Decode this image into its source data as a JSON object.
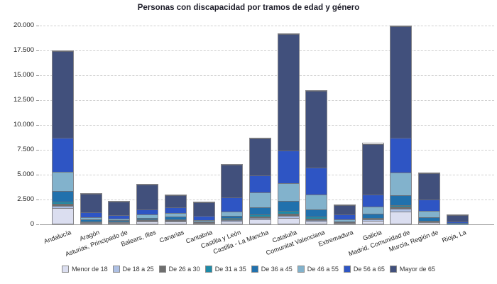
{
  "title": "Personas con discapacidad por tramos de edad y género",
  "chart_data": {
    "type": "bar",
    "stacked": true,
    "title": "Personas con discapacidad por tramos de edad y género",
    "xlabel": "",
    "ylabel": "",
    "ylim": [
      0,
      20000
    ],
    "yticks": [
      0,
      2500,
      5000,
      7500,
      10000,
      12500,
      15000,
      17500,
      20000
    ],
    "ytick_labels": [
      "0",
      "2.500",
      "5.000",
      "7.500",
      "10.000",
      "12.500",
      "15.000",
      "17.500",
      "20.000"
    ],
    "grid": "horizontal-dashed",
    "legend_position": "bottom",
    "categories": [
      "Andalucía",
      "Aragón",
      "Asturias, Principado de",
      "Balears, Illes",
      "Canarias",
      "Cantabria",
      "Castilla y León",
      "Castilla - La Mancha",
      "Cataluña",
      "Comunitat Valenciana",
      "Extremadura",
      "Galicia",
      "Madrid, Comunidad de",
      "Murcia, Región de",
      "Rioja, La"
    ],
    "series": [
      {
        "name": "Menor de 18",
        "color": "#dbdef0",
        "values": [
          1550,
          90,
          80,
          250,
          240,
          70,
          250,
          400,
          560,
          230,
          60,
          300,
          1190,
          110,
          5
        ]
      },
      {
        "name": "De 18 a 25",
        "color": "#aec0e4",
        "values": [
          250,
          40,
          40,
          50,
          70,
          25,
          90,
          160,
          230,
          160,
          30,
          100,
          300,
          60,
          5
        ]
      },
      {
        "name": "De 26 a 30",
        "color": "#6e6e6e",
        "values": [
          200,
          40,
          40,
          50,
          60,
          20,
          80,
          160,
          190,
          140,
          25,
          120,
          240,
          50,
          5
        ]
      },
      {
        "name": "De 31 a 35",
        "color": "#1d8ba8",
        "values": [
          250,
          40,
          70,
          50,
          70,
          25,
          140,
          190,
          280,
          170,
          25,
          90,
          150,
          60,
          5
        ]
      },
      {
        "name": "De 36 a 45",
        "color": "#2171ad",
        "values": [
          1050,
          190,
          100,
          210,
          280,
          110,
          230,
          700,
          1000,
          740,
          100,
          420,
          950,
          350,
          10
        ]
      },
      {
        "name": "De 46 a 55",
        "color": "#82b2cc",
        "values": [
          1900,
          230,
          180,
          300,
          380,
          120,
          420,
          1520,
          1810,
          1480,
          180,
          670,
          2290,
          630,
          20
        ]
      },
      {
        "name": "De 56 a 65",
        "color": "#2e55c4",
        "values": [
          3440,
          510,
          350,
          510,
          560,
          420,
          1410,
          1760,
          3310,
          2730,
          490,
          1200,
          3500,
          1170,
          160
        ]
      },
      {
        "name": "Mayor de 65",
        "color": "#41507c",
        "values": [
          8700,
          1870,
          1380,
          2530,
          1170,
          1360,
          3320,
          3690,
          11720,
          7740,
          930,
          5140,
          11220,
          2640,
          650
        ]
      }
    ]
  }
}
